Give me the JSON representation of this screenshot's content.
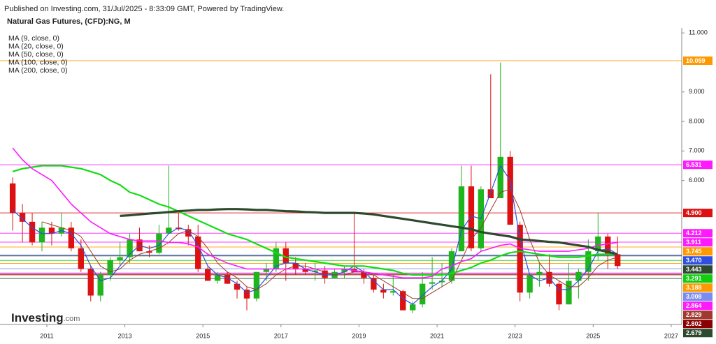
{
  "chart_data": {
    "type": "candlestick",
    "published": "Published on Investing.com, 31/Jul/2025 - 8:33:09 GMT, Powered by TradingView.",
    "title": "Natural Gas Futures, (CFD):NG, M",
    "logo": "Investing",
    "logo_suffix": ".com",
    "up_color": "#1fb51f",
    "down_color": "#dd1111",
    "xlim": [
      2009.8,
      2027.27
    ],
    "xticks": [
      2011,
      2013,
      2015,
      2017,
      2019,
      2021,
      2023,
      2025,
      2027
    ],
    "ylim": [
      1.12,
      11.17
    ],
    "yticks": [
      {
        "value": 11,
        "label": "11.000"
      },
      {
        "value": 9,
        "label": "9.000"
      },
      {
        "value": 8,
        "label": "8.000"
      },
      {
        "value": 7,
        "label": "7.000"
      },
      {
        "value": 6,
        "label": "6.000"
      }
    ],
    "x": [
      2010.125,
      2010.375,
      2010.625,
      2010.875,
      2011.125,
      2011.375,
      2011.625,
      2011.875,
      2012.125,
      2012.375,
      2012.625,
      2012.875,
      2013.125,
      2013.375,
      2013.625,
      2013.875,
      2014.125,
      2014.375,
      2014.625,
      2014.875,
      2015.125,
      2015.375,
      2015.625,
      2015.875,
      2016.125,
      2016.375,
      2016.625,
      2016.875,
      2017.125,
      2017.375,
      2017.625,
      2017.875,
      2018.125,
      2018.375,
      2018.625,
      2018.875,
      2019.125,
      2019.375,
      2019.625,
      2019.875,
      2020.125,
      2020.375,
      2020.625,
      2020.875,
      2021.125,
      2021.375,
      2021.625,
      2021.875,
      2022.125,
      2022.375,
      2022.625,
      2022.875,
      2023.125,
      2023.375,
      2023.625,
      2023.875,
      2024.125,
      2024.375,
      2024.625,
      2024.875,
      2025.125,
      2025.375,
      2025.625
    ],
    "candles": [
      [
        5.9,
        6.1,
        4.3,
        4.9
      ],
      [
        4.9,
        5.2,
        3.9,
        4.6
      ],
      [
        4.6,
        4.9,
        3.8,
        3.9
      ],
      [
        3.9,
        4.6,
        3.6,
        4.4
      ],
      [
        4.4,
        4.6,
        3.8,
        4.2
      ],
      [
        4.2,
        4.9,
        4.1,
        4.4
      ],
      [
        4.4,
        4.6,
        3.6,
        3.7
      ],
      [
        3.7,
        4.0,
        2.9,
        3.0
      ],
      [
        3.0,
        3.1,
        1.9,
        2.1
      ],
      [
        2.1,
        2.9,
        1.9,
        2.8
      ],
      [
        2.8,
        3.4,
        2.6,
        3.3
      ],
      [
        3.3,
        3.9,
        3.1,
        3.4
      ],
      [
        3.4,
        4.2,
        3.2,
        4.0
      ],
      [
        4.0,
        4.4,
        3.6,
        3.6
      ],
      [
        3.6,
        3.8,
        3.4,
        3.55
      ],
      [
        3.55,
        4.5,
        3.5,
        4.2
      ],
      [
        4.2,
        6.5,
        4.2,
        4.4
      ],
      [
        4.4,
        4.9,
        4.3,
        4.35
      ],
      [
        4.35,
        4.5,
        3.8,
        4.1
      ],
      [
        4.1,
        4.5,
        2.9,
        3.0
      ],
      [
        3.0,
        3.1,
        2.6,
        2.6
      ],
      [
        2.6,
        2.9,
        2.5,
        2.8
      ],
      [
        2.8,
        2.9,
        2.5,
        2.5
      ],
      [
        2.5,
        2.6,
        2.0,
        2.3
      ],
      [
        2.3,
        2.4,
        1.6,
        2.0
      ],
      [
        2.0,
        2.9,
        1.9,
        2.9
      ],
      [
        2.9,
        3.2,
        2.6,
        3.0
      ],
      [
        3.0,
        3.9,
        2.9,
        3.7
      ],
      [
        3.7,
        3.9,
        2.6,
        3.2
      ],
      [
        3.2,
        3.4,
        2.8,
        3.0
      ],
      [
        3.0,
        3.2,
        2.8,
        2.9
      ],
      [
        2.9,
        3.2,
        2.6,
        2.95
      ],
      [
        2.95,
        3.1,
        2.5,
        2.7
      ],
      [
        2.7,
        3.0,
        2.7,
        2.9
      ],
      [
        2.9,
        3.1,
        2.7,
        3.0
      ],
      [
        3.0,
        4.9,
        3.0,
        2.9
      ],
      [
        2.9,
        3.0,
        2.5,
        2.7
      ],
      [
        2.7,
        2.8,
        2.2,
        2.3
      ],
      [
        2.3,
        2.5,
        2.0,
        2.2
      ],
      [
        2.2,
        2.8,
        2.1,
        2.25
      ],
      [
        2.25,
        2.3,
        1.6,
        1.6
      ],
      [
        1.6,
        1.9,
        1.5,
        1.8
      ],
      [
        1.8,
        2.9,
        1.7,
        2.5
      ],
      [
        2.5,
        3.4,
        2.3,
        2.55
      ],
      [
        2.55,
        3.2,
        2.4,
        2.6
      ],
      [
        2.6,
        3.7,
        2.5,
        3.6
      ],
      [
        3.6,
        6.5,
        3.6,
        5.8
      ],
      [
        5.8,
        6.5,
        3.6,
        3.7
      ],
      [
        3.7,
        5.8,
        3.6,
        5.7
      ],
      [
        5.7,
        9.6,
        5.5,
        5.4
      ],
      [
        5.4,
        10.0,
        5.4,
        6.8
      ],
      [
        6.8,
        7.0,
        4.5,
        4.5
      ],
      [
        4.5,
        4.6,
        1.9,
        2.2
      ],
      [
        2.2,
        2.8,
        2.0,
        2.8
      ],
      [
        2.8,
        3.2,
        2.4,
        2.9
      ],
      [
        2.9,
        3.5,
        2.4,
        2.5
      ],
      [
        2.5,
        2.6,
        1.6,
        1.8
      ],
      [
        1.8,
        3.2,
        1.8,
        2.6
      ],
      [
        2.6,
        3.0,
        2.0,
        2.9
      ],
      [
        2.9,
        4.0,
        2.6,
        3.6
      ],
      [
        3.6,
        4.9,
        3.3,
        4.1
      ],
      [
        4.1,
        4.2,
        3.0,
        3.5
      ],
      [
        3.5,
        4.1,
        3.0,
        3.1
      ]
    ],
    "series": [
      {
        "name": "MA (9, close, 0)",
        "color": "#2f4fe0",
        "width": 1.2,
        "values": [
          5.0,
          4.7,
          4.4,
          4.2,
          4.2,
          4.3,
          4.2,
          3.8,
          3.1,
          2.6,
          2.7,
          3.1,
          3.5,
          3.8,
          3.7,
          3.8,
          4.2,
          4.4,
          4.3,
          3.8,
          3.1,
          2.8,
          2.7,
          2.5,
          2.2,
          2.3,
          2.7,
          3.1,
          3.2,
          3.2,
          3.0,
          2.9,
          2.8,
          2.8,
          2.9,
          3.1,
          2.9,
          2.6,
          2.3,
          2.3,
          2.0,
          1.8,
          2.1,
          2.4,
          2.6,
          3.0,
          4.3,
          4.8,
          4.7,
          5.6,
          6.5,
          6.0,
          4.0,
          2.8,
          2.6,
          2.7,
          2.3,
          2.3,
          2.6,
          3.0,
          3.6,
          3.7,
          3.5
        ]
      },
      {
        "name": "MA (20, close, 0)",
        "color": "#a0392f",
        "width": 1,
        "values": [
          null,
          null,
          null,
          4.6,
          4.5,
          4.4,
          4.3,
          4.1,
          3.6,
          3.1,
          2.9,
          3.0,
          3.3,
          3.5,
          3.6,
          3.7,
          3.9,
          4.2,
          4.3,
          4.1,
          3.7,
          3.2,
          2.9,
          2.7,
          2.4,
          2.3,
          2.5,
          2.8,
          3.0,
          3.1,
          3.1,
          3.0,
          2.9,
          2.8,
          2.8,
          2.9,
          2.9,
          2.8,
          2.6,
          2.4,
          2.2,
          2.0,
          2.0,
          2.2,
          2.4,
          2.6,
          3.3,
          4.0,
          4.4,
          5.0,
          5.6,
          5.7,
          5.0,
          4.0,
          3.2,
          2.8,
          2.6,
          2.4,
          2.4,
          2.7,
          3.1,
          3.3,
          3.4
        ]
      },
      {
        "name": "MA (50, close, 0)",
        "color": "#11dd11",
        "width": 2.2,
        "values": [
          6.3,
          6.4,
          6.45,
          6.5,
          6.5,
          6.5,
          6.45,
          6.4,
          6.3,
          6.2,
          6.0,
          5.85,
          5.6,
          5.5,
          5.35,
          5.2,
          5.1,
          4.95,
          4.8,
          4.65,
          4.5,
          4.35,
          4.2,
          4.1,
          4.0,
          3.85,
          3.7,
          3.55,
          3.4,
          3.35,
          3.3,
          3.25,
          3.2,
          3.15,
          3.1,
          3.1,
          3.1,
          3.05,
          3.0,
          2.95,
          2.85,
          2.8,
          2.8,
          2.8,
          2.8,
          2.85,
          2.95,
          3.05,
          3.2,
          3.3,
          3.45,
          3.55,
          3.6,
          3.55,
          3.5,
          3.45,
          3.4,
          3.4,
          3.4,
          3.45,
          3.5,
          3.5,
          3.5
        ]
      },
      {
        "name": "MA (100, close, 0)",
        "color": "#ff19ff",
        "width": 1.6,
        "values": [
          7.1,
          6.7,
          6.4,
          6.2,
          6.0,
          5.6,
          5.2,
          4.9,
          4.6,
          4.4,
          4.2,
          4.1,
          4.0,
          3.95,
          3.95,
          3.95,
          3.9,
          3.9,
          3.85,
          3.75,
          3.5,
          3.35,
          3.2,
          3.1,
          3.0,
          3.0,
          3.0,
          3.0,
          3.0,
          3.0,
          3.0,
          3.0,
          3.0,
          3.0,
          3.0,
          2.95,
          2.9,
          2.85,
          2.8,
          2.75,
          2.7,
          2.7,
          2.7,
          2.75,
          3.0,
          3.1,
          3.25,
          3.35,
          3.6,
          3.7,
          3.8,
          3.85,
          3.7,
          3.65,
          3.6,
          3.6,
          3.6,
          3.6,
          3.65,
          3.7,
          3.8,
          3.85,
          3.9
        ]
      },
      {
        "name": "MA (200, close, 0)",
        "color": "#2e4a2e",
        "width": 3.2,
        "values": [
          null,
          null,
          null,
          null,
          null,
          null,
          null,
          null,
          null,
          null,
          null,
          4.8,
          4.82,
          4.85,
          4.88,
          4.9,
          4.93,
          4.96,
          4.98,
          5.0,
          5.0,
          5.02,
          5.03,
          5.03,
          5.02,
          5.0,
          5.0,
          4.98,
          4.96,
          4.95,
          4.93,
          4.92,
          4.9,
          4.9,
          4.9,
          4.9,
          4.88,
          4.85,
          4.8,
          4.75,
          4.7,
          4.65,
          4.6,
          4.55,
          4.5,
          4.45,
          4.4,
          4.35,
          4.25,
          4.2,
          4.15,
          4.1,
          4.0,
          3.98,
          3.95,
          3.92,
          3.9,
          3.85,
          3.8,
          3.75,
          3.65,
          3.58,
          3.5
        ]
      }
    ],
    "levels": [
      {
        "value": 10.059,
        "label": "10.059",
        "color": "#ff9900"
      },
      {
        "value": 6.531,
        "label": "6.531",
        "color": "#ff19ff"
      },
      {
        "value": 4.9,
        "label": "4.900",
        "color": "#dd1111"
      },
      {
        "value": 4.212,
        "label": "4.212",
        "color": "#ff19ff"
      },
      {
        "value": 3.911,
        "label": "3.911",
        "color": "#ff19ff"
      },
      {
        "value": 3.745,
        "label": "3.745",
        "color": "#ff9900"
      },
      {
        "value": 3.47,
        "label": "3.470",
        "color": "#2f4fe0"
      },
      {
        "value": 3.443,
        "label": "3.443",
        "color": "#2e4a2e"
      },
      {
        "value": 3.291,
        "label": "3.291",
        "color": "#11cc11"
      },
      {
        "value": 3.188,
        "label": "3.188",
        "color": "#ff9900"
      },
      {
        "value": 3.008,
        "label": "3.008",
        "color": "#7a8cf0"
      },
      {
        "value": 2.864,
        "label": "2.864",
        "color": "#ff19ff"
      },
      {
        "value": 2.829,
        "label": "2.829",
        "color": "#a0392f"
      },
      {
        "value": 2.802,
        "label": "2.802",
        "color": "#8b0000"
      },
      {
        "value": 2.679,
        "label": "2.679",
        "color": "#2e4a2e"
      }
    ]
  }
}
